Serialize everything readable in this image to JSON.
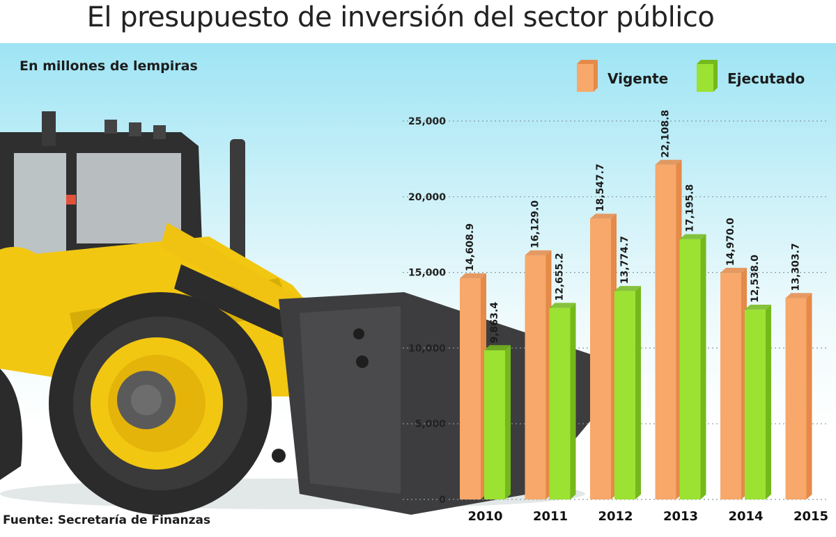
{
  "header": {
    "title": "El presupuesto de inversión del sector público"
  },
  "unit_label": "En millones de lempiras",
  "source": "Fuente: Secretaría de Finanzas",
  "colors": {
    "vigente": "#f7a86a",
    "vigente_side": "#e58a48",
    "ejecutado": "#9be232",
    "ejecutado_side": "#74b91c",
    "sky": "#9ee4f4"
  },
  "illustration": {
    "icon": "backhoe-loader-illustration"
  },
  "chart_data": {
    "type": "bar",
    "title": "El presupuesto de inversión del sector público",
    "ylabel": "En millones de lempiras",
    "xlabel": "",
    "categories": [
      "2010",
      "2011",
      "2012",
      "2013",
      "2014",
      "2015"
    ],
    "series": [
      {
        "name": "Vigente",
        "values": [
          14608.9,
          16129.0,
          18547.7,
          22108.8,
          14970.0,
          13303.7
        ],
        "labels": [
          "14,608.9",
          "16,129.0",
          "18,547.7",
          "22,108.8",
          "14,970.0",
          "13,303.7"
        ]
      },
      {
        "name": "Ejecutado",
        "values": [
          9863.4,
          12655.2,
          13774.7,
          17195.8,
          12538.0,
          null
        ],
        "labels": [
          "9,863.4",
          "12,655.2",
          "13,774.7",
          "17,195.8",
          "12,538.0",
          null
        ]
      }
    ],
    "ylim": [
      0,
      25000
    ],
    "yticks": [
      0,
      5000,
      10000,
      15000,
      20000,
      25000
    ],
    "ytick_labels": [
      "0",
      "5,000",
      "10,000",
      "15,000",
      "20,000",
      "25,000"
    ],
    "grid": true,
    "legend": "top-right"
  }
}
